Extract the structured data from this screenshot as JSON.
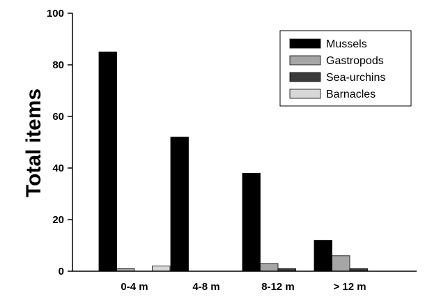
{
  "chart_data": {
    "type": "bar",
    "title": "",
    "xlabel": "",
    "ylabel": "Total items",
    "ylim": [
      0,
      100
    ],
    "yticks": [
      "0",
      "20",
      "40",
      "60",
      "80",
      "100"
    ],
    "categories": [
      "0-4 m",
      "4-8 m",
      "8-12 m",
      "> 12 m"
    ],
    "series": [
      {
        "name": "Mussels",
        "color": "#000000",
        "values": [
          85,
          52,
          38,
          12
        ]
      },
      {
        "name": "Gastropods",
        "color": "#a6a6a6",
        "values": [
          1,
          0,
          3,
          6
        ]
      },
      {
        "name": "Sea-urchins",
        "color": "#3a3a3a",
        "values": [
          0,
          0,
          1,
          1
        ]
      },
      {
        "name": "Barnacles",
        "color": "#d8d8d8",
        "values": [
          2,
          0,
          0,
          0
        ]
      }
    ],
    "grid": false,
    "legend_position": "top-right"
  }
}
